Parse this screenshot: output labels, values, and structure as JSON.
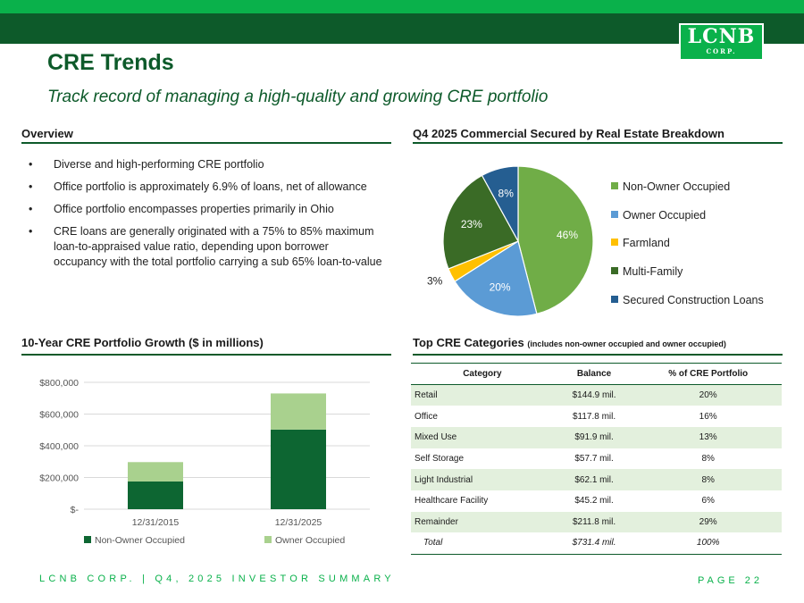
{
  "header": {
    "title": "CRE Trends",
    "subtitle": "Track record of managing a high-quality and growing CRE portfolio"
  },
  "logo": {
    "big": "LCNB",
    "small": "CORP."
  },
  "overview": {
    "heading": "Overview",
    "bullets": [
      "Diverse and high-performing CRE portfolio",
      "Office portfolio is approximately 6.9% of loans, net of allowance",
      "Office portfolio encompasses properties primarily in Ohio",
      "CRE loans are generally originated with a 75% to 85% maximum loan-to-appraised value ratio, depending upon borrower occupancy with the total portfolio carrying a sub 65% loan-to-value"
    ]
  },
  "pie_section": {
    "heading": "Q4 2025 Commercial Secured by Real Estate Breakdown"
  },
  "bar_section": {
    "heading": "10-Year CRE Portfolio Growth ($ in millions)"
  },
  "table_section": {
    "heading": "Top CRE Categories",
    "heading_note": "(includes non-owner occupied and owner occupied)",
    "columns": [
      "Category",
      "Balance",
      "% of CRE Portfolio"
    ],
    "rows": [
      [
        "Retail",
        "$144.9 mil.",
        "20%"
      ],
      [
        "Office",
        "$117.8 mil.",
        "16%"
      ],
      [
        "Mixed Use",
        "$91.9 mil.",
        "13%"
      ],
      [
        "Self Storage",
        "$57.7 mil.",
        "8%"
      ],
      [
        "Light Industrial",
        "$62.1 mil.",
        "8%"
      ],
      [
        "Healthcare Facility",
        "$45.2 mil.",
        "6%"
      ],
      [
        "Remainder",
        "$211.8 mil.",
        "29%"
      ]
    ],
    "total": [
      "Total",
      "$731.4 mil.",
      "100%"
    ]
  },
  "chart_data": [
    {
      "type": "pie",
      "categories": [
        "Non-Owner Occupied",
        "Owner Occupied",
        "Farmland",
        "Multi-Family",
        "Secured Construction Loans"
      ],
      "values": [
        46,
        20,
        3,
        23,
        8
      ],
      "labels": [
        "46%",
        "20%",
        "3%",
        "23%",
        "8%"
      ],
      "colors": [
        "#70ad47",
        "#5b9bd5",
        "#ffc000",
        "#3a6b26",
        "#255e91"
      ],
      "legend": "right"
    },
    {
      "type": "bar",
      "stacked": true,
      "categories": [
        "12/31/2015",
        "12/31/2025"
      ],
      "series": [
        {
          "name": "Non-Owner Occupied",
          "values": [
            175000,
            502000
          ],
          "color": "#0d6632"
        },
        {
          "name": "Owner Occupied",
          "values": [
            122000,
            228000
          ],
          "color": "#a9d18e"
        }
      ],
      "ylim": [
        0,
        800000
      ],
      "yticks": [
        0,
        200000,
        400000,
        600000,
        800000
      ],
      "ytick_labels": [
        "$-",
        "$200,000",
        "$400,000",
        "$600,000",
        "$800,000"
      ],
      "grid": true,
      "legend": "bottom"
    }
  ],
  "footer": {
    "left": "LCNB CORP. | Q4, 2025 INVESTOR SUMMARY",
    "right": "PAGE 22"
  }
}
